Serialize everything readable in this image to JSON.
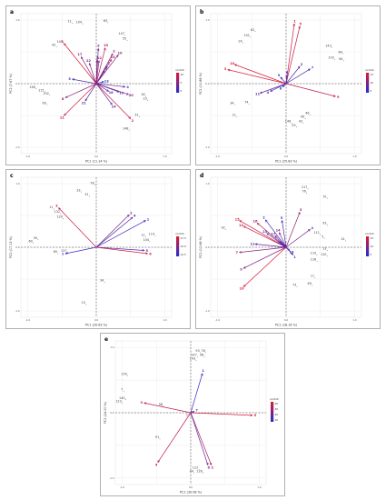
{
  "legend": {
    "title": "contrib"
  },
  "chart_data": [
    {
      "panel": "a",
      "type": "scatter",
      "xlabel": "PC1 (11.14 %)",
      "ylabel": "PC2 (7.67 %)",
      "xlim": [
        -1.1,
        1.1
      ],
      "ylim": [
        -1.1,
        1.1
      ],
      "legend_ticks": [
        "10",
        "5",
        "0"
      ],
      "points": [
        {
          "label": "11",
          "x": -0.35,
          "y": 0.95
        },
        {
          "label": "104",
          "x": -0.2,
          "y": 0.94
        },
        {
          "label": "63",
          "x": 0.17,
          "y": 0.96
        },
        {
          "label": "145",
          "x": -0.48,
          "y": 0.63
        },
        {
          "label": "42",
          "x": -0.58,
          "y": 0.58
        },
        {
          "label": "147",
          "x": 0.42,
          "y": 0.76
        },
        {
          "label": "55",
          "x": 0.45,
          "y": 0.68
        },
        {
          "label": "146",
          "x": -0.88,
          "y": -0.08
        },
        {
          "label": "115",
          "x": -0.75,
          "y": -0.13
        },
        {
          "label": "102",
          "x": -0.68,
          "y": -0.18
        },
        {
          "label": "69",
          "x": -0.72,
          "y": -0.33
        },
        {
          "label": "16",
          "x": 0.72,
          "y": -0.2
        },
        {
          "label": "23",
          "x": 0.75,
          "y": -0.26
        },
        {
          "label": "51",
          "x": 0.63,
          "y": -0.52
        },
        {
          "label": "148",
          "x": 0.48,
          "y": -0.73
        }
      ],
      "vectors": [
        {
          "label": "3",
          "x": -0.47,
          "y": 0.63,
          "c": 0.95
        },
        {
          "label": "17",
          "x": -0.22,
          "y": 0.42,
          "c": 0.55
        },
        {
          "label": "22",
          "x": -0.1,
          "y": 0.32,
          "c": 0.45
        },
        {
          "label": "9",
          "x": 0.03,
          "y": 0.55,
          "c": 0.4
        },
        {
          "label": "15",
          "x": 0.13,
          "y": 0.56,
          "c": 0.75
        },
        {
          "label": "12",
          "x": 0.04,
          "y": 0.36,
          "c": 0.55
        },
        {
          "label": "7",
          "x": 0.01,
          "y": 0.37,
          "c": 0.5
        },
        {
          "label": "14",
          "x": 0.22,
          "y": 0.38,
          "c": 0.6
        },
        {
          "label": "2",
          "x": 0.24,
          "y": 0.47,
          "c": 0.6
        },
        {
          "label": "10",
          "x": 0.32,
          "y": 0.45,
          "c": 0.55
        },
        {
          "label": "1",
          "x": 0.16,
          "y": 0.28,
          "c": 0.35
        },
        {
          "label": "6",
          "x": 0.12,
          "y": 0.2,
          "c": 0.35
        },
        {
          "label": "13",
          "x": 0.11,
          "y": 0.03,
          "c": 0.1
        },
        {
          "label": "5",
          "x": -0.35,
          "y": 0.07,
          "c": 0.25
        },
        {
          "label": "4",
          "x": 0.42,
          "y": -0.05,
          "c": 0.3
        },
        {
          "label": "19",
          "x": 0.33,
          "y": -0.13,
          "c": 0.35
        },
        {
          "label": "20",
          "x": 0.47,
          "y": -0.17,
          "c": 0.45
        },
        {
          "label": "18",
          "x": 0.18,
          "y": -0.12,
          "c": 0.25
        },
        {
          "label": "8",
          "x": -0.45,
          "y": -0.22,
          "c": 0.55
        },
        {
          "label": "21",
          "x": -0.16,
          "y": -0.27,
          "c": 0.3
        },
        {
          "label": "14",
          "x": 0.23,
          "y": -0.33,
          "c": 0.3
        },
        {
          "label": "11",
          "x": -0.47,
          "y": -0.5,
          "c": 0.9
        },
        {
          "label": "2",
          "x": 0.5,
          "y": -0.55,
          "c": 0.9
        }
      ]
    },
    {
      "panel": "b",
      "type": "scatter",
      "xlabel": "PC1 (25.83 %)",
      "ylabel": "PC2 (10.88 %)",
      "xlim": [
        -1.1,
        1.1
      ],
      "ylim": [
        -1.1,
        1.1
      ],
      "legend_ticks": [
        "15",
        "10",
        "5"
      ],
      "points": [
        {
          "label": "62",
          "x": -0.45,
          "y": 0.82
        },
        {
          "label": "101",
          "x": -0.52,
          "y": 0.73
        },
        {
          "label": "24",
          "x": -0.63,
          "y": 0.64
        },
        {
          "label": "143",
          "x": 0.67,
          "y": 0.57
        },
        {
          "label": "84",
          "x": 0.83,
          "y": 0.47
        },
        {
          "label": "103",
          "x": 0.71,
          "y": 0.38
        },
        {
          "label": "64",
          "x": 0.84,
          "y": 0.36
        },
        {
          "label": "74",
          "x": -0.54,
          "y": -0.32
        },
        {
          "label": "34",
          "x": -0.75,
          "y": -0.33
        },
        {
          "label": "11",
          "x": -0.72,
          "y": -0.52
        },
        {
          "label": "146",
          "x": 0.08,
          "y": -0.62
        },
        {
          "label": "49",
          "x": 0.28,
          "y": -0.55
        },
        {
          "label": "46",
          "x": 0.35,
          "y": -0.49
        },
        {
          "label": "43",
          "x": 0.25,
          "y": -0.62
        },
        {
          "label": "29",
          "x": 0.15,
          "y": -0.68
        }
      ],
      "vectors": [
        {
          "label": "1",
          "x": 0.12,
          "y": 0.94,
          "c": 0.9
        },
        {
          "label": "5",
          "x": 0.2,
          "y": 0.9,
          "c": 0.85
        },
        {
          "label": "10",
          "x": -0.75,
          "y": 0.3,
          "c": 0.95
        },
        {
          "label": "3",
          "x": -0.85,
          "y": 0.22,
          "c": 0.95
        },
        {
          "label": "2",
          "x": 0.2,
          "y": 0.27,
          "c": 0.25
        },
        {
          "label": "7",
          "x": 0.35,
          "y": 0.23,
          "c": 0.2
        },
        {
          "label": "6",
          "x": 0.01,
          "y": 0.13,
          "c": 0.15
        },
        {
          "label": "9",
          "x": -0.08,
          "y": 0.1,
          "c": 0.15
        },
        {
          "label": "8",
          "x": -0.05,
          "y": -0.05,
          "c": 0.15
        },
        {
          "label": "11",
          "x": -0.38,
          "y": -0.15,
          "c": 0.3
        },
        {
          "label": "4",
          "x": -0.23,
          "y": -0.12,
          "c": 0.2
        },
        {
          "label": "9",
          "x": 0.72,
          "y": -0.2,
          "c": 0.8
        }
      ]
    },
    {
      "panel": "c",
      "type": "scatter",
      "xlabel": "PC1 (20.63 %)",
      "ylabel": "PC2 (17.13 %)",
      "xlim": [
        -1.1,
        1.1
      ],
      "ylim": [
        -1.1,
        1.1
      ],
      "legend_ticks": [
        "17.5",
        "15.0",
        "12.5"
      ],
      "points": [
        {
          "label": "78",
          "x": -0.02,
          "y": 0.98
        },
        {
          "label": "33",
          "x": -0.22,
          "y": 0.87
        },
        {
          "label": "51",
          "x": -0.1,
          "y": 0.8
        },
        {
          "label": "11",
          "x": -0.62,
          "y": 0.6
        },
        {
          "label": "132",
          "x": -0.52,
          "y": 0.53
        },
        {
          "label": "120",
          "x": -0.48,
          "y": 0.45
        },
        {
          "label": "59",
          "x": -0.85,
          "y": 0.12
        },
        {
          "label": "60",
          "x": -0.92,
          "y": 0.07
        },
        {
          "label": "137",
          "x": -0.42,
          "y": -0.08
        },
        {
          "label": "69",
          "x": -0.56,
          "y": -0.1
        },
        {
          "label": "114",
          "x": 0.86,
          "y": 0.18
        },
        {
          "label": "72",
          "x": 0.72,
          "y": 0.16
        },
        {
          "label": "104",
          "x": 0.78,
          "y": 0.09
        },
        {
          "label": "34",
          "x": 0.12,
          "y": -0.55
        },
        {
          "label": "15",
          "x": -0.15,
          "y": -0.9
        }
      ],
      "vectors": [
        {
          "label": "3",
          "x": -0.55,
          "y": 0.62,
          "c": 0.9
        },
        {
          "label": "2",
          "x": 0.48,
          "y": 0.51,
          "c": 0.5
        },
        {
          "label": "4",
          "x": 0.53,
          "y": 0.47,
          "c": 0.2
        },
        {
          "label": "1",
          "x": 0.72,
          "y": 0.42,
          "c": 0.15
        },
        {
          "label": "5",
          "x": 0.7,
          "y": -0.05,
          "c": 0.25
        },
        {
          "label": "6",
          "x": 0.75,
          "y": -0.1,
          "c": 0.9
        },
        {
          "label": "7",
          "x": -0.45,
          "y": -0.1,
          "c": 0.1
        }
      ]
    },
    {
      "panel": "d",
      "type": "scatter",
      "xlabel": "PC1 (18.16 %)",
      "ylabel": "PC2 (12.66 %)",
      "xlim": [
        -1.1,
        1.1
      ],
      "ylim": [
        -1.1,
        1.1
      ],
      "legend_ticks": [
        "15",
        "10",
        "5"
      ],
      "points": [
        {
          "label": "117",
          "x": 0.32,
          "y": 0.92
        },
        {
          "label": "76",
          "x": 0.3,
          "y": 0.85
        },
        {
          "label": "70",
          "x": 0.6,
          "y": 0.77
        },
        {
          "label": "92",
          "x": -0.88,
          "y": 0.28
        },
        {
          "label": "93",
          "x": 0.6,
          "y": 0.35
        },
        {
          "label": "111",
          "x": 0.5,
          "y": 0.2
        },
        {
          "label": "5",
          "x": 0.56,
          "y": 0.14
        },
        {
          "label": "41",
          "x": 0.87,
          "y": 0.1
        },
        {
          "label": "13",
          "x": 0.6,
          "y": -0.05
        },
        {
          "label": "119",
          "x": 0.45,
          "y": -0.12
        },
        {
          "label": "110",
          "x": 0.6,
          "y": -0.14
        },
        {
          "label": "126",
          "x": 0.45,
          "y": -0.22
        },
        {
          "label": "77",
          "x": 0.42,
          "y": -0.48
        },
        {
          "label": "73",
          "x": 0.16,
          "y": -0.62
        },
        {
          "label": "69",
          "x": 0.38,
          "y": -0.6
        }
      ],
      "vectors": [
        {
          "label": "15",
          "x": -0.68,
          "y": 0.42,
          "c": 0.95
        },
        {
          "label": "12",
          "x": -0.62,
          "y": 0.33,
          "c": 0.85
        },
        {
          "label": "16",
          "x": -0.42,
          "y": 0.38,
          "c": 0.7
        },
        {
          "label": "2",
          "x": -0.3,
          "y": 0.43,
          "c": 0.2
        },
        {
          "label": "5",
          "x": -0.06,
          "y": 0.42,
          "c": 0.2
        },
        {
          "label": "14",
          "x": -0.1,
          "y": 0.23,
          "c": 0.5
        },
        {
          "label": "17",
          "x": -0.16,
          "y": 0.18,
          "c": 0.3
        },
        {
          "label": "13",
          "x": -0.28,
          "y": 0.22,
          "c": 0.3
        },
        {
          "label": "3",
          "x": 0.2,
          "y": 0.55,
          "c": 0.6
        },
        {
          "label": "4",
          "x": 0.35,
          "y": 0.28,
          "c": 0.4
        },
        {
          "label": "11",
          "x": -0.45,
          "y": 0.05,
          "c": 0.3
        },
        {
          "label": "7",
          "x": -0.68,
          "y": -0.08,
          "c": 0.55
        },
        {
          "label": "19",
          "x": -0.06,
          "y": 0.05,
          "c": 0.15
        },
        {
          "label": "6",
          "x": -0.04,
          "y": 0.03,
          "c": 0.15
        },
        {
          "label": "18",
          "x": 0.05,
          "y": -0.05,
          "c": 0.15
        },
        {
          "label": "9",
          "x": -0.62,
          "y": -0.33,
          "c": 0.5
        },
        {
          "label": "10",
          "x": -0.62,
          "y": -0.62,
          "c": 0.95
        },
        {
          "label": "1",
          "x": 0.1,
          "y": -0.12,
          "c": 0.2
        }
      ]
    },
    {
      "panel": "e",
      "type": "scatter",
      "xlabel": "PC1 (30.08 %)",
      "ylabel": "PC2 (24.00 %)",
      "xlim": [
        -1.1,
        1.1
      ],
      "ylim": [
        -1.1,
        1.1
      ],
      "legend_ticks": [
        "40",
        "30",
        "20",
        "10"
      ],
      "points": [
        {
          "label": "93",
          "x": 0.14,
          "y": 0.92
        },
        {
          "label": "78",
          "x": 0.22,
          "y": 0.92
        },
        {
          "label": "147",
          "x": 0.1,
          "y": 0.86
        },
        {
          "label": "96",
          "x": 0.2,
          "y": 0.86
        },
        {
          "label": "143",
          "x": 0.08,
          "y": 0.8
        },
        {
          "label": "150",
          "x": -0.92,
          "y": 0.57
        },
        {
          "label": "7",
          "x": -0.98,
          "y": 0.33
        },
        {
          "label": "140",
          "x": -0.95,
          "y": 0.2
        },
        {
          "label": "123",
          "x": -1.0,
          "y": 0.15
        },
        {
          "label": "58",
          "x": -0.4,
          "y": 0.1
        },
        {
          "label": "91",
          "x": -0.45,
          "y": -0.4
        },
        {
          "label": "17",
          "x": 0.0,
          "y": -0.06
        },
        {
          "label": "112",
          "x": 0.12,
          "y": -0.87
        },
        {
          "label": "44",
          "x": 0.05,
          "y": -0.92
        },
        {
          "label": "126",
          "x": 0.18,
          "y": -0.92
        }
      ],
      "vectors": [
        {
          "label": "1",
          "x": 0.17,
          "y": 0.6,
          "c": 0.1
        },
        {
          "label": "3",
          "x": -0.68,
          "y": 0.15,
          "c": 0.8
        },
        {
          "label": "5",
          "x": 0.9,
          "y": -0.04,
          "c": 0.95
        },
        {
          "label": "4",
          "x": -0.48,
          "y": -0.76,
          "c": 0.85
        },
        {
          "label": "2",
          "x": 0.3,
          "y": -0.8,
          "c": 0.7
        },
        {
          "label": "6",
          "x": 0.25,
          "y": -0.8,
          "c": 0.4
        },
        {
          "label": "7",
          "x": 0.05,
          "y": 0.02,
          "c": 0.2
        }
      ]
    }
  ]
}
